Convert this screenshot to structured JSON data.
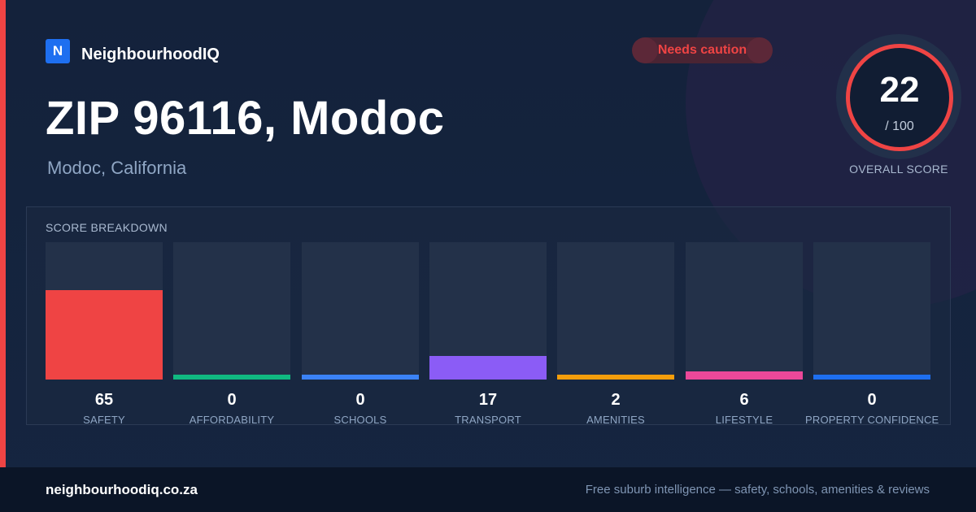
{
  "brand": {
    "logo_letter": "N",
    "name": "NeighbourhoodIQ",
    "color": "#1e6ff0"
  },
  "status": {
    "label": "Needs caution",
    "color": "#ef4444"
  },
  "header": {
    "title": "ZIP 96116, Modoc",
    "subtitle": "Modoc, California"
  },
  "overall": {
    "score": "22",
    "max": "/ 100",
    "label": "OVERALL SCORE",
    "ring_color": "#ef4444"
  },
  "breakdown": {
    "title": "SCORE BREAKDOWN",
    "items": [
      {
        "label": "SAFETY",
        "value": "65",
        "color": "#ef4444"
      },
      {
        "label": "AFFORDABILITY",
        "value": "0",
        "color": "#10b981"
      },
      {
        "label": "SCHOOLS",
        "value": "0",
        "color": "#3b82f6"
      },
      {
        "label": "TRANSPORT",
        "value": "17",
        "color": "#8b5cf6"
      },
      {
        "label": "AMENITIES",
        "value": "2",
        "color": "#f59e0b"
      },
      {
        "label": "LIFESTYLE",
        "value": "6",
        "color": "#ec4899"
      },
      {
        "label": "PROPERTY CONFIDENCE",
        "value": "0",
        "color": "#1e6ff0"
      }
    ]
  },
  "footer": {
    "site": "neighbourhoodiq.co.za",
    "tagline": "Free suburb intelligence — safety, schools, amenities & reviews"
  }
}
